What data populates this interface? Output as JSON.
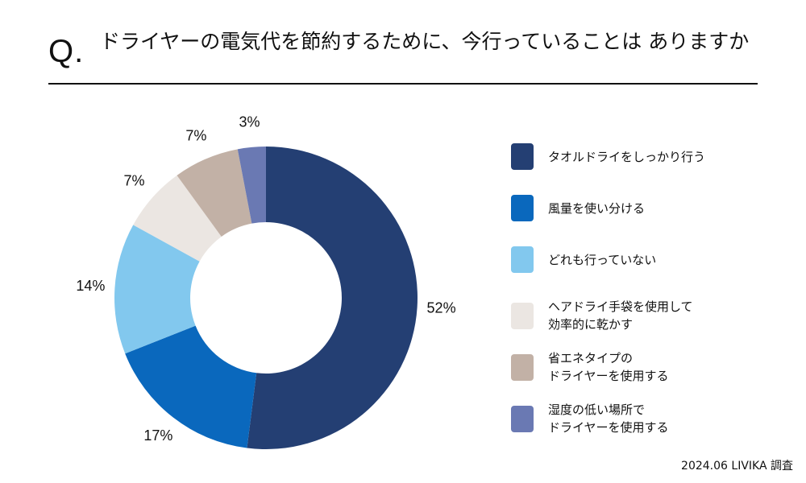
{
  "question": {
    "prefix": "Q.",
    "text": "ドライヤーの電気代を節約するために、今行っていることは\nありますか"
  },
  "source": "2024.06 LIVIKA 調査",
  "chart_data": {
    "type": "pie",
    "donut": true,
    "title": "",
    "categories": [
      "タオルドライをしっかり行う",
      "風量を使い分ける",
      "どれも行っていない",
      "ヘアドライ手袋を使用して\n効率的に乾かす",
      "省エネタイプの\nドライヤーを使用する",
      "湿度の低い場所で\nドライヤーを使用する"
    ],
    "values": [
      52,
      17,
      14,
      7,
      7,
      3
    ],
    "value_labels": [
      "52%",
      "17%",
      "14%",
      "7%",
      "7%",
      "3%"
    ],
    "colors": [
      "#243f73",
      "#0a68bd",
      "#82c8ee",
      "#ebe6e2",
      "#c2b1a6",
      "#6a79b3"
    ],
    "start": "top",
    "direction": "clockwise",
    "legend_position": "right"
  }
}
